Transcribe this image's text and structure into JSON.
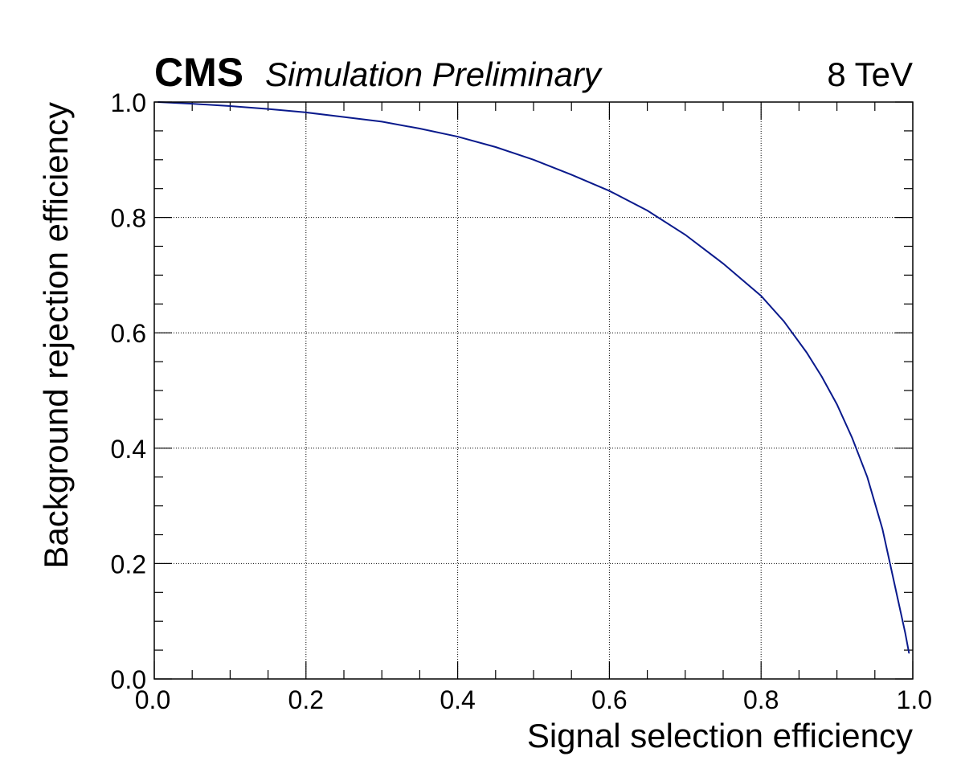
{
  "header": {
    "experiment": "CMS",
    "subtitle": "Simulation Preliminary",
    "energy": "8 TeV"
  },
  "chart_data": {
    "type": "line",
    "title": "",
    "xlabel": "Signal selection efficiency",
    "ylabel": "Background rejection efficiency",
    "xlim": [
      0.0,
      1.0
    ],
    "ylim": [
      0.0,
      1.0
    ],
    "xticks": [
      "0.0",
      "0.2",
      "0.4",
      "0.6",
      "0.8",
      "1.0"
    ],
    "yticks": [
      "0.0",
      "0.2",
      "0.4",
      "0.6",
      "0.8",
      "1.0"
    ],
    "grid": true,
    "line_color": "#0a1a8c",
    "series": [
      {
        "x": [
          0.005,
          0.05,
          0.1,
          0.15,
          0.2,
          0.25,
          0.3,
          0.35,
          0.4,
          0.45,
          0.5,
          0.55,
          0.6,
          0.65,
          0.7,
          0.75,
          0.8,
          0.83,
          0.86,
          0.88,
          0.9,
          0.92,
          0.94,
          0.96,
          0.97,
          0.98,
          0.99,
          0.995
        ],
        "y": [
          1.0,
          0.997,
          0.993,
          0.988,
          0.982,
          0.974,
          0.966,
          0.954,
          0.94,
          0.922,
          0.9,
          0.874,
          0.846,
          0.812,
          0.77,
          0.72,
          0.664,
          0.62,
          0.566,
          0.524,
          0.476,
          0.418,
          0.35,
          0.26,
          0.2,
          0.14,
          0.08,
          0.045
        ]
      }
    ]
  }
}
